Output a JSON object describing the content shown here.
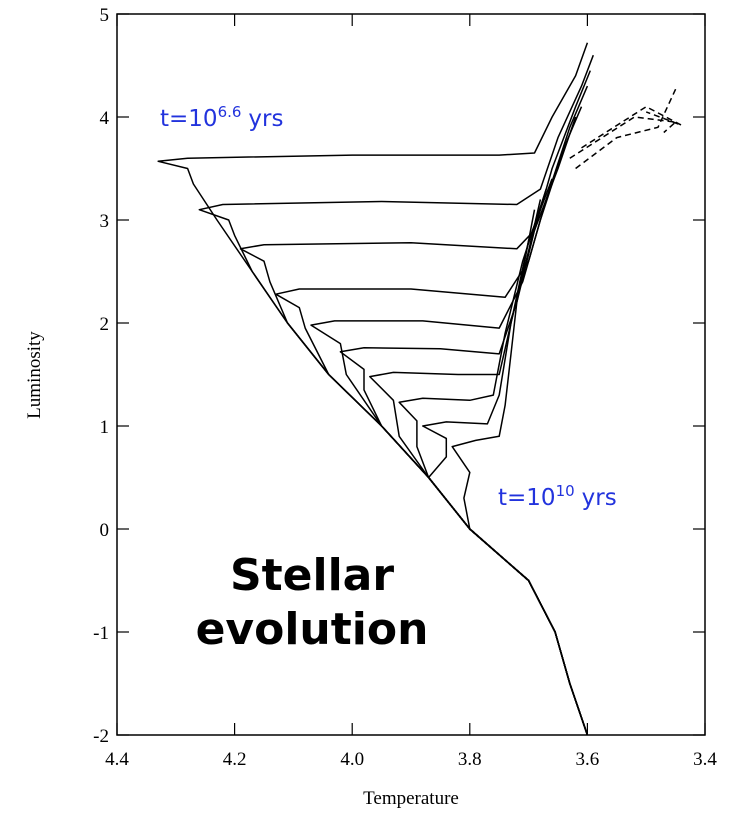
{
  "chart_data": {
    "type": "line",
    "xlabel": "Temperature",
    "ylabel": "Luminosity",
    "xlim": [
      4.4,
      3.4
    ],
    "ylim": [
      -2,
      5
    ],
    "xticks": [
      4.4,
      4.2,
      {
        "value": 4,
        "label": "4.0"
      },
      3.8,
      3.6,
      3.4
    ],
    "yticks": [
      -2,
      -1,
      0,
      1,
      2,
      3,
      4,
      5
    ],
    "annotations": [
      {
        "text": "t=10",
        "sup": "6.6",
        "tail": "yrs",
        "color": "#2233dd"
      },
      {
        "text": "t=10",
        "sup": "10",
        "tail": "yrs",
        "color": "#2233dd"
      },
      {
        "lines": [
          "Stellar",
          "evolution"
        ],
        "color": "#000000"
      }
    ],
    "series": [
      {
        "color": "#000000",
        "x": [
          3.6,
          3.63,
          3.655,
          3.7,
          3.8,
          3.87,
          3.95,
          4.04,
          4.11,
          4.17,
          4.23,
          4.27,
          4.28,
          4.33,
          4.28,
          4.0,
          3.75,
          3.69,
          3.66,
          3.62,
          3.6
        ],
        "values": [
          -2,
          -1.5,
          -1,
          -0.5,
          0,
          0.5,
          1,
          1.5,
          2,
          2.5,
          3,
          3.35,
          3.5,
          3.57,
          3.6,
          3.63,
          3.63,
          3.65,
          4.0,
          4.4,
          4.72
        ]
      },
      {
        "color": "#000000",
        "x": [
          3.6,
          3.63,
          3.655,
          3.7,
          3.8,
          3.87,
          3.95,
          4.04,
          4.11,
          4.17,
          4.2,
          4.21,
          4.26,
          4.22,
          3.95,
          3.72,
          3.68,
          3.65,
          3.61,
          3.59
        ],
        "values": [
          -2,
          -1.5,
          -1,
          -0.5,
          0,
          0.5,
          1,
          1.5,
          2,
          2.5,
          2.85,
          3.0,
          3.1,
          3.15,
          3.18,
          3.15,
          3.3,
          3.8,
          4.3,
          4.6
        ]
      },
      {
        "color": "#000000",
        "x": [
          3.6,
          3.63,
          3.655,
          3.7,
          3.8,
          3.87,
          3.95,
          4.04,
          4.11,
          4.14,
          4.15,
          4.19,
          4.15,
          3.9,
          3.72,
          3.69,
          3.66,
          3.62,
          3.595
        ],
        "values": [
          -2,
          -1.5,
          -1,
          -0.5,
          0,
          0.5,
          1,
          1.5,
          2,
          2.4,
          2.6,
          2.72,
          2.76,
          2.78,
          2.72,
          2.9,
          3.5,
          4.1,
          4.45
        ]
      },
      {
        "color": "#000000",
        "x": [
          3.6,
          3.63,
          3.655,
          3.7,
          3.8,
          3.87,
          3.95,
          4.04,
          4.08,
          4.09,
          4.13,
          4.09,
          3.9,
          3.74,
          3.7,
          3.67,
          3.63,
          3.6
        ],
        "values": [
          -2,
          -1.5,
          -1,
          -0.5,
          0,
          0.5,
          1,
          1.5,
          1.95,
          2.15,
          2.28,
          2.33,
          2.33,
          2.25,
          2.6,
          3.2,
          3.9,
          4.3
        ]
      },
      {
        "color": "#000000",
        "x": [
          3.6,
          3.63,
          3.655,
          3.7,
          3.8,
          3.87,
          3.95,
          4.01,
          4.02,
          4.07,
          4.03,
          3.88,
          3.75,
          3.71,
          3.68,
          3.64,
          3.61
        ],
        "values": [
          -2,
          -1.5,
          -1,
          -0.5,
          0,
          0.5,
          1,
          1.5,
          1.8,
          1.98,
          2.02,
          2.02,
          1.95,
          2.4,
          3.0,
          3.7,
          4.1
        ]
      },
      {
        "color": "#000000",
        "x": [
          3.6,
          3.63,
          3.655,
          3.7,
          3.8,
          3.87,
          3.95,
          3.98,
          3.98,
          4.02,
          3.98,
          3.85,
          3.75,
          3.72,
          3.69,
          3.65,
          3.62
        ],
        "values": [
          -2,
          -1.5,
          -1,
          -0.5,
          0,
          0.5,
          1,
          1.35,
          1.55,
          1.72,
          1.76,
          1.75,
          1.7,
          2.2,
          2.9,
          3.5,
          4.0
        ]
      },
      {
        "color": "#000000",
        "x": [
          3.6,
          3.63,
          3.655,
          3.7,
          3.8,
          3.87,
          3.92,
          3.93,
          3.97,
          3.93,
          3.82,
          3.75,
          3.73,
          3.7,
          3.66
        ],
        "values": [
          -2,
          -1.5,
          -1,
          -0.5,
          0,
          0.5,
          0.9,
          1.25,
          1.48,
          1.52,
          1.5,
          1.5,
          2.0,
          2.8,
          3.4
        ]
      },
      {
        "color": "#000000",
        "x": [
          3.6,
          3.63,
          3.655,
          3.7,
          3.8,
          3.87,
          3.89,
          3.89,
          3.92,
          3.88,
          3.8,
          3.76,
          3.74,
          3.71,
          3.67
        ],
        "values": [
          -2,
          -1.5,
          -1,
          -0.5,
          0,
          0.5,
          0.8,
          1.05,
          1.23,
          1.27,
          1.25,
          1.3,
          1.9,
          2.6,
          3.3
        ]
      },
      {
        "color": "#000000",
        "x": [
          3.6,
          3.63,
          3.655,
          3.7,
          3.8,
          3.87,
          3.84,
          3.84,
          3.88,
          3.84,
          3.77,
          3.75,
          3.73,
          3.7,
          3.68
        ],
        "values": [
          -2,
          -1.5,
          -1,
          -0.5,
          0,
          0.5,
          0.7,
          0.88,
          1.0,
          1.04,
          1.02,
          1.3,
          2.0,
          2.7,
          3.2
        ]
      },
      {
        "color": "#000000",
        "x": [
          3.6,
          3.63,
          3.655,
          3.7,
          3.8,
          3.81,
          3.8,
          3.83,
          3.79,
          3.75,
          3.74,
          3.73,
          3.72,
          3.7,
          3.69
        ],
        "values": [
          -2,
          -1.5,
          -1,
          -0.5,
          0,
          0.3,
          0.55,
          0.8,
          0.86,
          0.9,
          1.2,
          1.7,
          2.2,
          2.8,
          3.1
        ]
      },
      {
        "color": "#000000",
        "dash": true,
        "x": [
          3.62,
          3.55,
          3.48,
          3.45
        ],
        "values": [
          3.5,
          3.8,
          3.9,
          4.27
        ]
      },
      {
        "color": "#000000",
        "dash": true,
        "x": [
          3.63,
          3.52,
          3.45,
          3.47
        ],
        "values": [
          3.6,
          4.0,
          3.95,
          3.85
        ]
      },
      {
        "color": "#000000",
        "dash": true,
        "x": [
          3.61,
          3.5,
          3.44,
          3.5
        ],
        "values": [
          3.7,
          4.1,
          3.92,
          4.05
        ]
      }
    ]
  }
}
